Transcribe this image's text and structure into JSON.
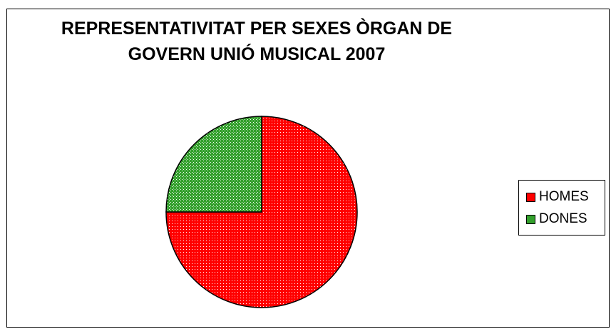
{
  "chart_data": {
    "type": "pie",
    "title_lines": [
      "REPRESENTATIVITAT PER SEXES ÒRGAN DE",
      "GOVERN UNIÓ MUSICAL 2007"
    ],
    "categories": [
      "HOMES",
      "DONES"
    ],
    "values": [
      75,
      25
    ],
    "colors": [
      "#ff0000",
      "#33a02c"
    ],
    "legend_position": "right",
    "start_angle_deg": 0,
    "direction": "clockwise"
  }
}
